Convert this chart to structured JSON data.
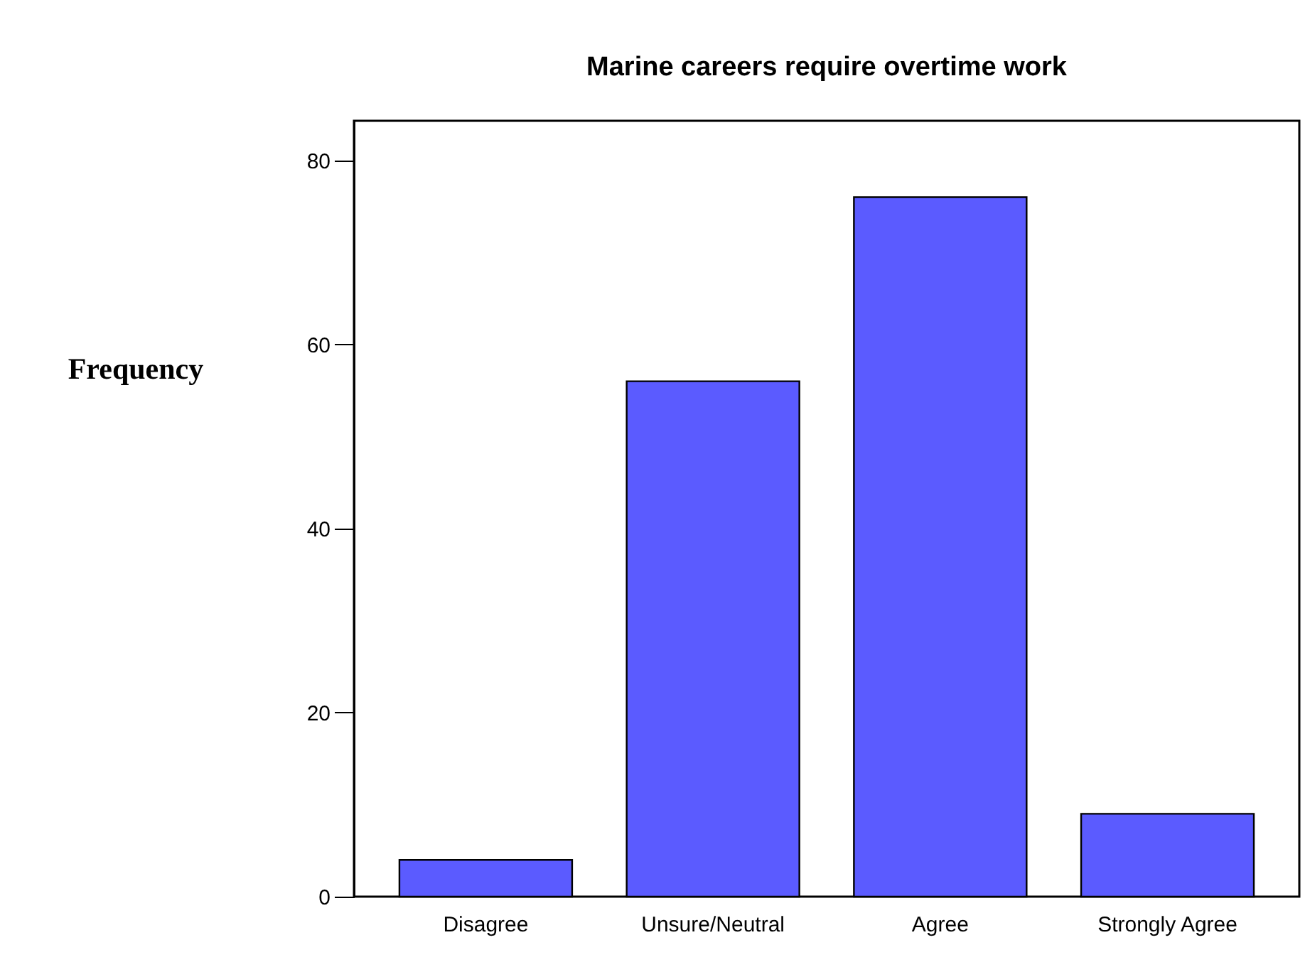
{
  "chart_data": {
    "type": "bar",
    "title": "Marine careers require overtime work",
    "ylabel": "Frequency",
    "categories": [
      "Disagree",
      "Unsure/Neutral",
      "Agree",
      "Strongly Agree"
    ],
    "values": [
      4,
      56,
      76,
      9
    ],
    "color": "#5b5bff",
    "ylim": [
      0,
      84.3
    ],
    "yticks": [
      0,
      20,
      40,
      60,
      80
    ],
    "grid": false
  }
}
